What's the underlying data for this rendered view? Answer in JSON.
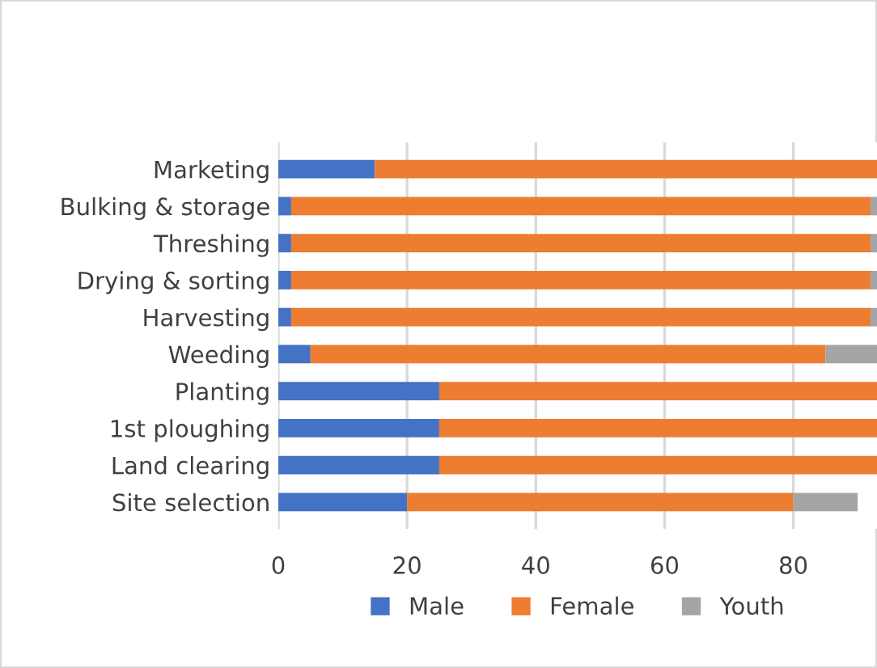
{
  "chart_data": {
    "type": "bar",
    "orientation": "horizontal",
    "stacked": true,
    "categories": [
      "Marketing",
      "Bulking & storage",
      "Threshing",
      "Drying & sorting",
      "Harvesting",
      "Weeding",
      "Planting",
      "1st ploughing",
      "Land clearing",
      "Site selection"
    ],
    "series": [
      {
        "name": "Male",
        "color": "#4472c4",
        "values": [
          15,
          2,
          2,
          2,
          2,
          5,
          25,
          25,
          25,
          20
        ]
      },
      {
        "name": "Female",
        "color": "#ed7d31",
        "values": [
          78,
          90,
          90,
          90,
          90,
          80,
          68,
          68,
          68,
          60
        ]
      },
      {
        "name": "Youth",
        "color": "#a5a5a5",
        "values": [
          0,
          1,
          1,
          1,
          1,
          8,
          0,
          0,
          0,
          10
        ]
      }
    ],
    "xlim": [
      0,
      93
    ],
    "xticks": [
      0,
      20,
      40,
      60,
      80
    ],
    "grid": "x",
    "legend": "bottom"
  }
}
